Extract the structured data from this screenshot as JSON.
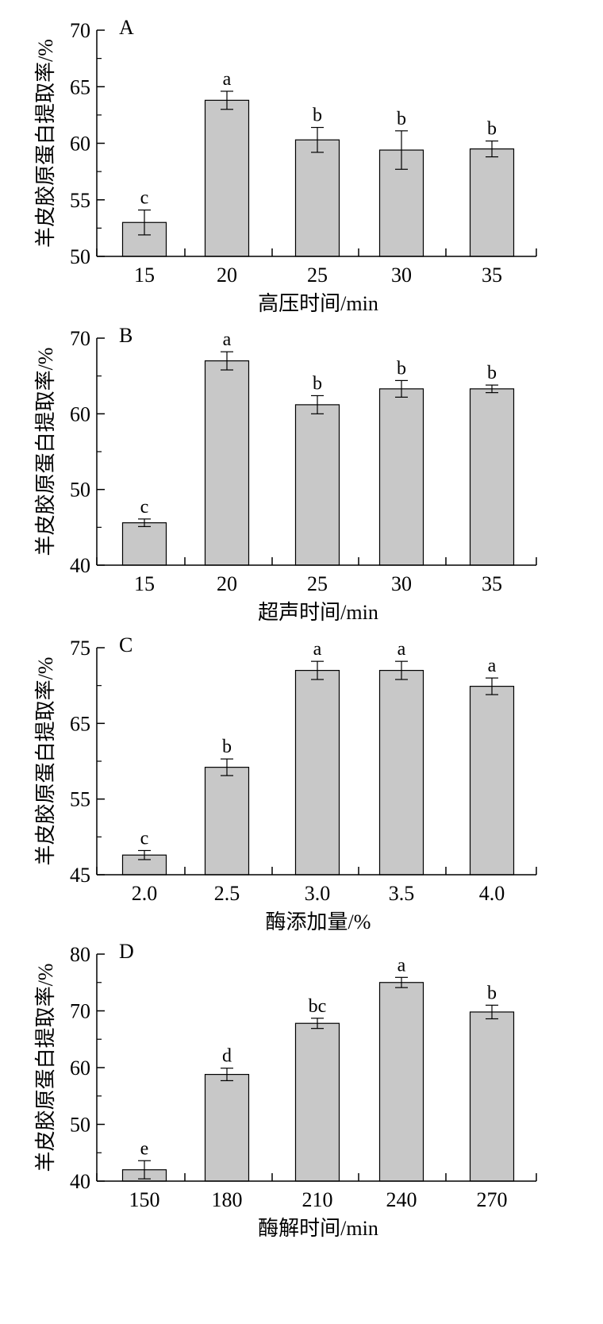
{
  "chart_data": [
    {
      "type": "bar",
      "panel": "A",
      "categories": [
        "15",
        "20",
        "25",
        "30",
        "35"
      ],
      "values": [
        53.0,
        63.8,
        60.3,
        59.4,
        59.5
      ],
      "errors": [
        1.1,
        0.8,
        1.1,
        1.7,
        0.7
      ],
      "significance": [
        "c",
        "a",
        "b",
        "b",
        "b"
      ],
      "xlabel": "高压时间/min",
      "ylabel": "羊皮胶原蛋白提取率/%",
      "ylim": [
        50,
        70
      ],
      "yticks": [
        "50",
        "55",
        "60",
        "65",
        "70"
      ],
      "bar_color": "#c8c8c8",
      "grid": false
    },
    {
      "type": "bar",
      "panel": "B",
      "categories": [
        "15",
        "20",
        "25",
        "30",
        "35"
      ],
      "values": [
        45.6,
        67.0,
        61.2,
        63.3,
        63.3
      ],
      "errors": [
        0.5,
        1.2,
        1.2,
        1.1,
        0.5
      ],
      "significance": [
        "c",
        "a",
        "b",
        "b",
        "b"
      ],
      "xlabel": "超声时间/min",
      "ylabel": "羊皮胶原蛋白提取率/%",
      "ylim": [
        40,
        70
      ],
      "yticks": [
        "40",
        "50",
        "60",
        "70"
      ],
      "bar_color": "#c8c8c8",
      "grid": false
    },
    {
      "type": "bar",
      "panel": "C",
      "categories": [
        "2.0",
        "2.5",
        "3.0",
        "3.5",
        "4.0"
      ],
      "values": [
        47.6,
        59.2,
        72.0,
        72.0,
        69.9
      ],
      "errors": [
        0.6,
        1.1,
        1.2,
        1.2,
        1.1
      ],
      "significance": [
        "c",
        "b",
        "a",
        "a",
        "a"
      ],
      "xlabel": "酶添加量/%",
      "ylabel": "羊皮胶原蛋白提取率/%",
      "ylim": [
        45,
        75
      ],
      "yticks": [
        "45",
        "55",
        "65",
        "75"
      ],
      "bar_color": "#c8c8c8",
      "grid": false
    },
    {
      "type": "bar",
      "panel": "D",
      "categories": [
        "150",
        "180",
        "210",
        "240",
        "270"
      ],
      "values": [
        42.0,
        58.8,
        67.8,
        75.0,
        69.8
      ],
      "errors": [
        1.6,
        1.1,
        0.9,
        0.9,
        1.2
      ],
      "significance": [
        "e",
        "d",
        "bc",
        "a",
        "b"
      ],
      "xlabel": "酶解时间/min",
      "ylabel": "羊皮胶原蛋白提取率/%",
      "ylim": [
        40,
        80
      ],
      "yticks": [
        "40",
        "50",
        "60",
        "70",
        "80"
      ],
      "bar_color": "#c8c8c8",
      "grid": false
    }
  ]
}
